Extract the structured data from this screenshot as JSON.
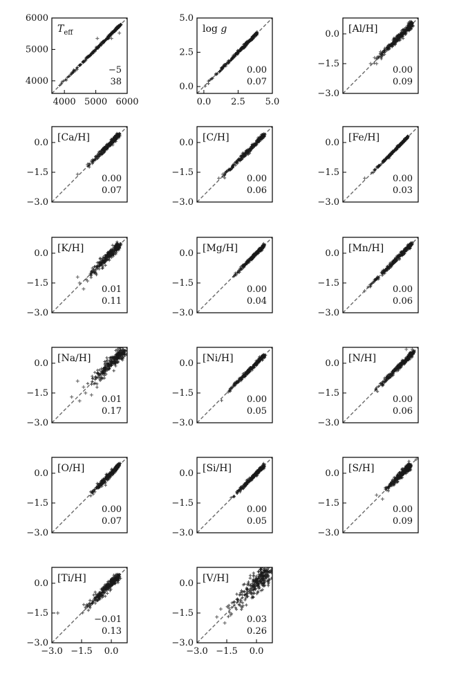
{
  "chart_data": [
    {
      "type": "scatter",
      "label": "Teff",
      "label_html": "T_eff",
      "xlim": [
        3600,
        6000
      ],
      "ylim": [
        3600,
        6000
      ],
      "xticks": [
        "4000",
        "5000",
        "6000"
      ],
      "yticks": [
        "4000",
        "5000",
        "6000"
      ],
      "show_xticks": true,
      "bias": "−5",
      "scatter": "38",
      "range": [
        3750,
        5800
      ],
      "spread": 0.025,
      "outliers": [
        [
          5750,
          5520
        ],
        [
          5500,
          5350
        ],
        [
          5050,
          5350
        ]
      ]
    },
    {
      "type": "scatter",
      "label": "log g",
      "xlim": [
        -0.5,
        5.0
      ],
      "ylim": [
        -0.5,
        5.0
      ],
      "xticks": [
        "0.0",
        "2.5",
        "5.0"
      ],
      "yticks": [
        "0.0",
        "2.5",
        "5.0"
      ],
      "show_xticks": true,
      "bias": "0.00",
      "scatter": "0.07",
      "range": [
        0.0,
        3.9
      ],
      "spread": 0.035,
      "outliers": []
    },
    {
      "type": "scatter",
      "label": "[Al/H]",
      "xlim": [
        -3.0,
        0.8
      ],
      "ylim": [
        -3.0,
        0.8
      ],
      "xticks": [],
      "yticks": [
        "0.0",
        "−1.5",
        "−3.0"
      ],
      "show_xticks": false,
      "bias": "0.00",
      "scatter": "0.09",
      "range": [
        -1.6,
        0.5
      ],
      "spread": 0.08,
      "outliers": [
        [
          -1.4,
          -1.2
        ],
        [
          -1.3,
          -1.5
        ],
        [
          -1.1,
          -0.9
        ],
        [
          -1.6,
          -1.5
        ]
      ]
    },
    {
      "type": "scatter",
      "label": "[Ca/H]",
      "xlim": [
        -3.0,
        0.8
      ],
      "ylim": [
        -3.0,
        0.8
      ],
      "xticks": [],
      "yticks": [
        "0.0",
        "−1.5",
        "−3.0"
      ],
      "show_xticks": false,
      "bias": "0.00",
      "scatter": "0.07",
      "range": [
        -1.3,
        0.4
      ],
      "spread": 0.06,
      "outliers": [
        [
          -1.7,
          -1.6
        ],
        [
          -1.2,
          -1.1
        ]
      ]
    },
    {
      "type": "scatter",
      "label": "[C/H]",
      "xlim": [
        -3.0,
        0.8
      ],
      "ylim": [
        -3.0,
        0.8
      ],
      "xticks": [],
      "yticks": [
        "0.0",
        "−1.5",
        "−3.0"
      ],
      "show_xticks": false,
      "bias": "0.00",
      "scatter": "0.06",
      "range": [
        -1.9,
        0.4
      ],
      "spread": 0.05,
      "outliers": [
        [
          -1.9,
          -1.8
        ],
        [
          -1.7,
          -1.6
        ]
      ]
    },
    {
      "type": "scatter",
      "label": "[Fe/H]",
      "xlim": [
        -3.0,
        0.8
      ],
      "ylim": [
        -3.0,
        0.8
      ],
      "xticks": [],
      "yticks": [
        "0.0",
        "−1.5",
        "−3.0"
      ],
      "show_xticks": false,
      "bias": "0.00",
      "scatter": "0.03",
      "range": [
        -1.8,
        0.3
      ],
      "spread": 0.025,
      "outliers": [
        [
          -1.9,
          -1.8
        ]
      ]
    },
    {
      "type": "scatter",
      "label": "[K/H]",
      "xlim": [
        -3.0,
        0.8
      ],
      "ylim": [
        -3.0,
        0.8
      ],
      "xticks": [],
      "yticks": [
        "0.0",
        "−1.5",
        "−3.0"
      ],
      "show_xticks": false,
      "bias": "0.01",
      "scatter": "0.11",
      "range": [
        -1.3,
        0.4
      ],
      "spread": 0.1,
      "outliers": [
        [
          -1.7,
          -1.2
        ],
        [
          -1.6,
          -1.5
        ],
        [
          -1.2,
          -1.4
        ],
        [
          -1.4,
          -1.8
        ]
      ]
    },
    {
      "type": "scatter",
      "label": "[Mg/H]",
      "xlim": [
        -3.0,
        0.8
      ],
      "ylim": [
        -3.0,
        0.8
      ],
      "xticks": [],
      "yticks": [
        "0.0",
        "−1.5",
        "−3.0"
      ],
      "show_xticks": false,
      "bias": "0.00",
      "scatter": "0.04",
      "range": [
        -1.2,
        0.4
      ],
      "spread": 0.035,
      "outliers": []
    },
    {
      "type": "scatter",
      "label": "[Mn/H]",
      "xlim": [
        -3.0,
        0.8
      ],
      "ylim": [
        -3.0,
        0.8
      ],
      "xticks": [],
      "yticks": [
        "0.0",
        "−1.5",
        "−3.0"
      ],
      "show_xticks": false,
      "bias": "0.00",
      "scatter": "0.06",
      "range": [
        -1.9,
        0.5
      ],
      "spread": 0.05,
      "outliers": [
        [
          -1.9,
          -1.9
        ]
      ]
    },
    {
      "type": "scatter",
      "label": "[Na/H]",
      "xlim": [
        -3.0,
        0.8
      ],
      "ylim": [
        -3.0,
        0.8
      ],
      "xticks": [],
      "yticks": [
        "0.0",
        "−1.5",
        "−3.0"
      ],
      "show_xticks": false,
      "bias": "0.01",
      "scatter": "0.17",
      "range": [
        -1.2,
        0.6
      ],
      "spread": 0.15,
      "outliers": [
        [
          -2.0,
          -1.7
        ],
        [
          -1.7,
          -0.9
        ],
        [
          -1.3,
          -1.5
        ],
        [
          -1.6,
          -1.9
        ],
        [
          -1.0,
          -1.6
        ],
        [
          -1.4,
          -1.2
        ]
      ]
    },
    {
      "type": "scatter",
      "label": "[Ni/H]",
      "xlim": [
        -3.0,
        0.8
      ],
      "ylim": [
        -3.0,
        0.8
      ],
      "xticks": [],
      "yticks": [
        "0.0",
        "−1.5",
        "−3.0"
      ],
      "show_xticks": false,
      "bias": "0.00",
      "scatter": "0.05",
      "range": [
        -1.8,
        0.4
      ],
      "spread": 0.045,
      "outliers": []
    },
    {
      "type": "scatter",
      "label": "[N/H]",
      "xlim": [
        -3.0,
        0.8
      ],
      "ylim": [
        -3.0,
        0.8
      ],
      "xticks": [],
      "yticks": [
        "0.0",
        "−1.5",
        "−3.0"
      ],
      "show_xticks": false,
      "bias": "0.00",
      "scatter": "0.06",
      "range": [
        -1.6,
        0.6
      ],
      "spread": 0.06,
      "outliers": [
        [
          0.2,
          0.7
        ],
        [
          0.5,
          0.7
        ]
      ]
    },
    {
      "type": "scatter",
      "label": "[O/H]",
      "xlim": [
        -3.0,
        0.8
      ],
      "ylim": [
        -3.0,
        0.8
      ],
      "xticks": [],
      "yticks": [
        "0.0",
        "−1.5",
        "−3.0"
      ],
      "show_xticks": false,
      "bias": "0.00",
      "scatter": "0.07",
      "range": [
        -1.3,
        0.4
      ],
      "spread": 0.06,
      "outliers": []
    },
    {
      "type": "scatter",
      "label": "[Si/H]",
      "xlim": [
        -3.0,
        0.8
      ],
      "ylim": [
        -3.0,
        0.8
      ],
      "xticks": [],
      "yticks": [
        "0.0",
        "−1.5",
        "−3.0"
      ],
      "show_xticks": false,
      "bias": "0.00",
      "scatter": "0.05",
      "range": [
        -1.3,
        0.4
      ],
      "spread": 0.045,
      "outliers": []
    },
    {
      "type": "scatter",
      "label": "[S/H]",
      "xlim": [
        -3.0,
        0.8
      ],
      "ylim": [
        -3.0,
        0.8
      ],
      "xticks": [],
      "yticks": [
        "0.0",
        "−1.5",
        "−3.0"
      ],
      "show_xticks": false,
      "bias": "0.00",
      "scatter": "0.09",
      "range": [
        -1.0,
        0.4
      ],
      "spread": 0.08,
      "outliers": [
        [
          -1.3,
          -1.1
        ],
        [
          0.7,
          0.7
        ],
        [
          -1.0,
          -1.3
        ]
      ]
    },
    {
      "type": "scatter",
      "label": "[Ti/H]",
      "xlim": [
        -3.0,
        0.8
      ],
      "ylim": [
        -3.0,
        0.8
      ],
      "xticks": [
        "−3.0",
        "−1.5",
        "0.0"
      ],
      "yticks": [
        "0.0",
        "−1.5",
        "−3.0"
      ],
      "show_xticks": true,
      "bias": "−0.01",
      "scatter": "0.13",
      "range": [
        -1.5,
        0.4
      ],
      "spread": 0.1,
      "outliers": [
        [
          -2.7,
          -1.5
        ],
        [
          -1.3,
          -1.2
        ]
      ]
    },
    {
      "type": "scatter",
      "label": "[V/H]",
      "xlim": [
        -3.0,
        0.8
      ],
      "ylim": [
        -3.0,
        0.8
      ],
      "xticks": [
        "−3.0",
        "−1.5",
        "0.0"
      ],
      "yticks": [
        "0.0",
        "−1.5",
        "−3.0"
      ],
      "show_xticks": true,
      "bias": "0.03",
      "scatter": "0.26",
      "range": [
        -1.5,
        0.6
      ],
      "spread": 0.25,
      "outliers": [
        [
          -2.0,
          -1.7
        ],
        [
          -1.8,
          -1.3
        ],
        [
          -1.6,
          -2.0
        ],
        [
          -1.3,
          -1.6
        ]
      ]
    }
  ],
  "colors": {
    "points": "#1a1a1a",
    "points_light": "#666666",
    "diagonal": "#666666",
    "axes": "#000000"
  }
}
